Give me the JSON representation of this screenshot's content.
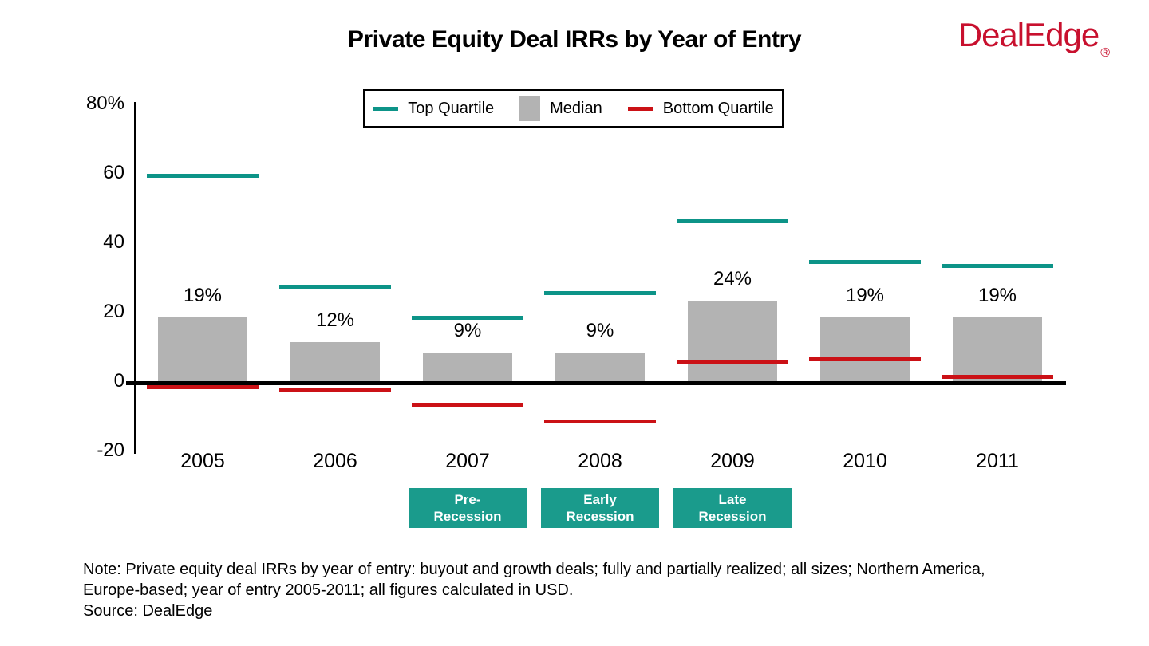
{
  "title": "Private Equity Deal IRRs by Year of Entry",
  "brand": {
    "name": "DealEdge",
    "registered_mark": "®"
  },
  "legend": {
    "items": [
      {
        "label": "Top Quartile",
        "swatch": "line",
        "color_key": "teal"
      },
      {
        "label": "Median",
        "swatch": "square",
        "color_key": "gray"
      },
      {
        "label": "Bottom Quartile",
        "swatch": "line",
        "color_key": "red"
      }
    ]
  },
  "chart_data": {
    "type": "bar",
    "title": "Private Equity Deal IRRs by Year of Entry",
    "categories": [
      "2005",
      "2006",
      "2007",
      "2008",
      "2009",
      "2010",
      "2011"
    ],
    "series": [
      {
        "name": "Top Quartile",
        "render": "dash",
        "color_key": "teal",
        "values": [
          60,
          28,
          19,
          26,
          47,
          35,
          34
        ]
      },
      {
        "name": "Median",
        "render": "bar",
        "color_key": "gray",
        "values": [
          19,
          12,
          9,
          9,
          24,
          19,
          19
        ],
        "value_labels": [
          "19%",
          "12%",
          "9%",
          "9%",
          "24%",
          "19%",
          "19%"
        ]
      },
      {
        "name": "Bottom Quartile",
        "render": "dash",
        "color_key": "red",
        "values": [
          -1,
          -2,
          -6,
          -11,
          6,
          7,
          2
        ]
      }
    ],
    "y_axis": {
      "unit": "%",
      "min": -20,
      "max": 80,
      "ticks": [
        {
          "label": "80%",
          "value": 80
        },
        {
          "label": "60",
          "value": 60
        },
        {
          "label": "40",
          "value": 40
        },
        {
          "label": "20",
          "value": 20
        },
        {
          "label": "0",
          "value": 0
        },
        {
          "label": "-20",
          "value": -20
        }
      ]
    },
    "annotations": [
      {
        "lines": [
          "Pre-",
          "Recession"
        ],
        "category": "2007"
      },
      {
        "lines": [
          "Early",
          "Recession"
        ],
        "category": "2008"
      },
      {
        "lines": [
          "Late",
          "Recession"
        ],
        "category": "2009"
      }
    ],
    "legend_position": "top-center",
    "grid": false
  },
  "note": {
    "line1": "Note: Private equity deal IRRs by year of entry: buyout and growth deals; fully and partially realized; all sizes; Northern America,",
    "line2": "Europe-based; year of entry 2005-2011; all figures calculated in USD.",
    "line3": "Source: DealEdge"
  },
  "colors": {
    "teal": "#0d9488",
    "gray": "#b3b3b3",
    "red": "#cb1116",
    "badge_teal": "#1a9b8c",
    "brand_red": "#c8102e",
    "axis_black": "#000000"
  }
}
